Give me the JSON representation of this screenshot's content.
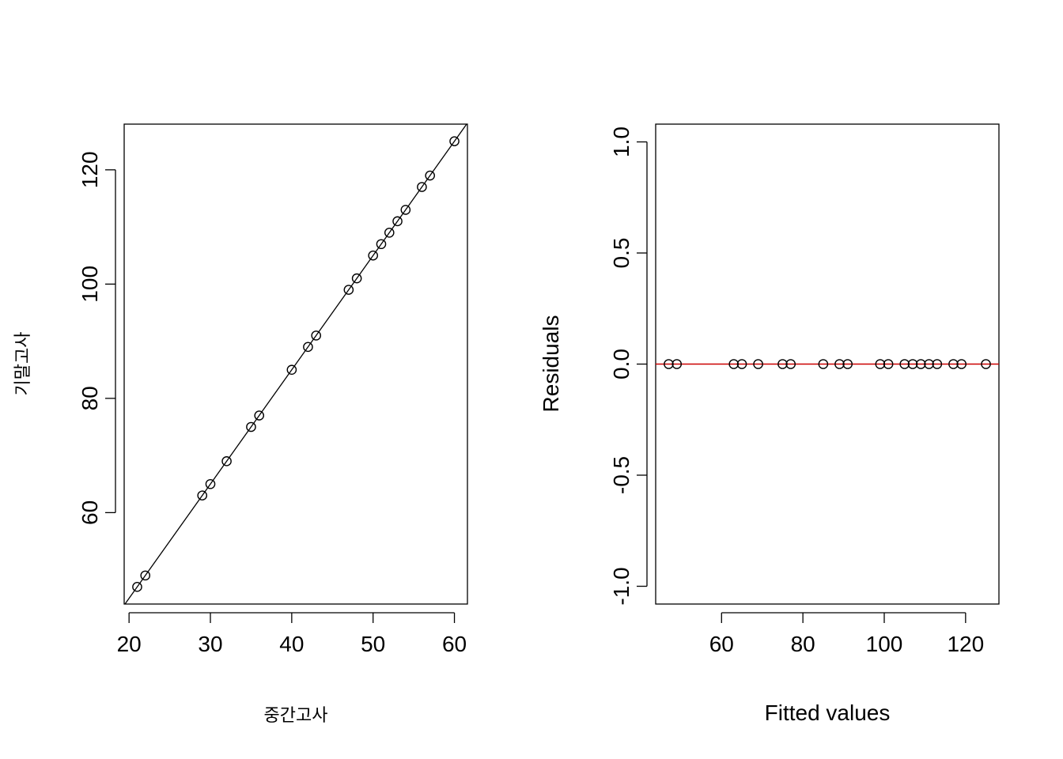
{
  "chart_data": [
    {
      "type": "scatter",
      "title": "",
      "xlabel": "중간고사",
      "ylabel": "기말고사",
      "xlim": [
        19.4,
        61.6
      ],
      "ylim": [
        44,
        128
      ],
      "xticks": [
        "20",
        "30",
        "40",
        "50",
        "60"
      ],
      "yticks": [
        "60",
        "80",
        "100",
        "120"
      ],
      "x": [
        21,
        22,
        29,
        30,
        32,
        35,
        36,
        40,
        42,
        43,
        47,
        48,
        50,
        51,
        52,
        53,
        54,
        56,
        57,
        60
      ],
      "y": [
        47,
        49,
        63,
        65,
        69,
        75,
        77,
        85,
        89,
        91,
        99,
        101,
        105,
        107,
        109,
        111,
        113,
        117,
        119,
        125
      ],
      "fit_line": {
        "intercept": 5,
        "slope": 2
      },
      "grid": false,
      "line_color": "#000000"
    },
    {
      "type": "scatter",
      "title": "",
      "xlabel": "Fitted values",
      "ylabel": "Residuals",
      "xlim": [
        43.8,
        128.2
      ],
      "ylim": [
        -1.08,
        1.08
      ],
      "xticks": [
        "60",
        "80",
        "100",
        "120"
      ],
      "yticks": [
        "-1.0",
        "-0.5",
        "0.0",
        "0.5",
        "1.0"
      ],
      "x": [
        47,
        49,
        63,
        65,
        69,
        75,
        77,
        85,
        89,
        91,
        99,
        101,
        105,
        107,
        109,
        111,
        113,
        117,
        119,
        125
      ],
      "y": [
        0,
        0,
        0,
        0,
        0,
        0,
        0,
        0,
        0,
        0,
        0,
        0,
        0,
        0,
        0,
        0,
        0,
        0,
        0,
        0
      ],
      "reference_line": 0,
      "grid": false,
      "reference_line_color": "#cc0000"
    }
  ]
}
